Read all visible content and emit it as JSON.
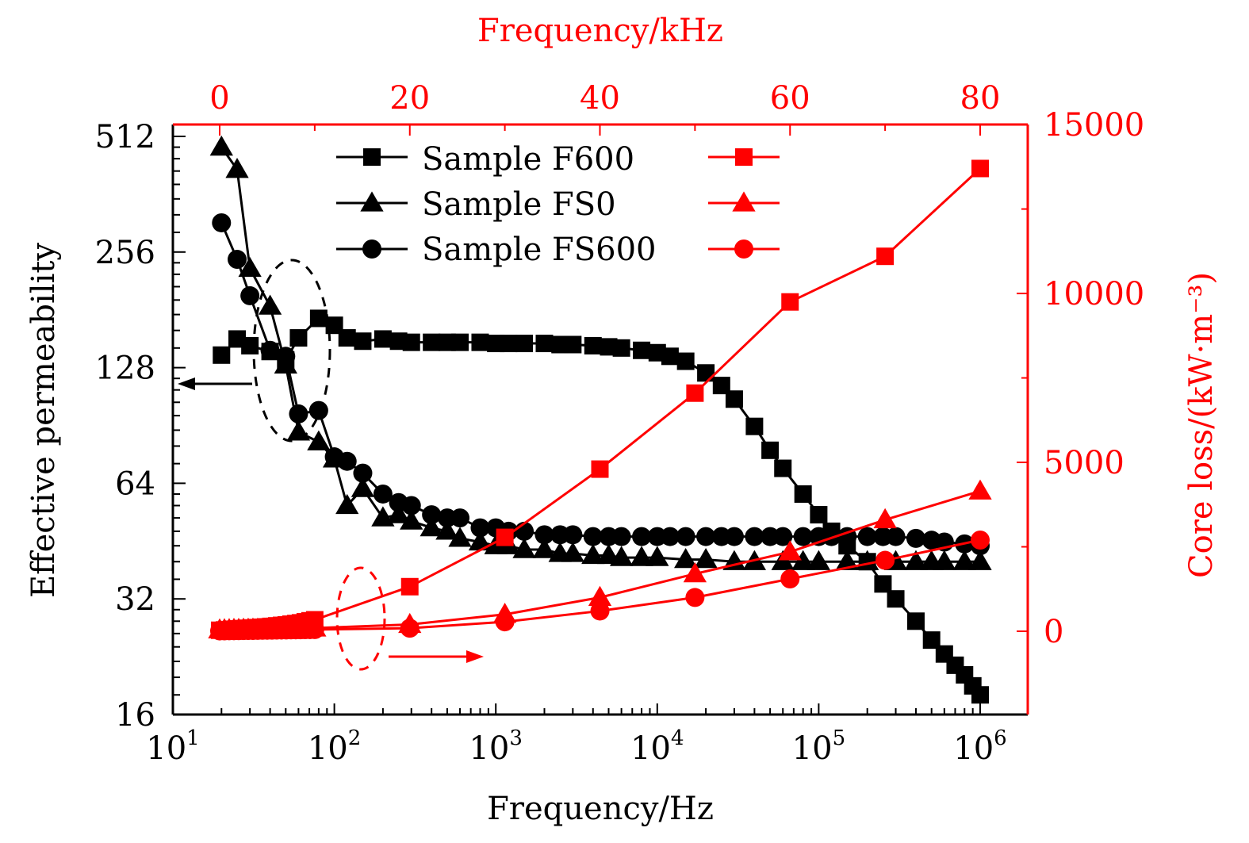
{
  "chart_data": {
    "type": "line",
    "title": "",
    "xlabel": "Frequency/Hz",
    "ylabel": "Effective permeability",
    "x_top_label": "Frequency/kHz",
    "y_right_label": "Core loss/(kW·m⁻³)",
    "x_scale": "log",
    "xlim": [
      10,
      2000000
    ],
    "ylim": [
      16,
      512
    ],
    "y_scale": "log2",
    "x_top_lim": [
      -5,
      85
    ],
    "y_right_lim": [
      -2500,
      15000
    ],
    "x_ticks": [
      {
        "base": "10",
        "exp": "1"
      },
      {
        "base": "10",
        "exp": "2"
      },
      {
        "base": "10",
        "exp": "3"
      },
      {
        "base": "10",
        "exp": "4"
      },
      {
        "base": "10",
        "exp": "5"
      },
      {
        "base": "10",
        "exp": "6"
      }
    ],
    "y_ticks": [
      "16",
      "32",
      "64",
      "128",
      "256",
      "512"
    ],
    "x_top_ticks": [
      "0",
      "20",
      "40",
      "60",
      "80"
    ],
    "y_right_ticks": [
      "0",
      "5000",
      "10000",
      "15000"
    ],
    "colors": {
      "permeability": "#000000",
      "core_loss": "#ff0000"
    },
    "legend": {
      "placement": "top-center",
      "entries": [
        {
          "label": "Sample F600",
          "marker": "square"
        },
        {
          "label": "Sample FS0",
          "marker": "triangle"
        },
        {
          "label": "Sample FS600",
          "marker": "circle"
        }
      ]
    },
    "annotations": [
      {
        "type": "dashed-ellipse",
        "color": "#000000",
        "arrow": "left",
        "meaning": "permeability curves refer to left axis"
      },
      {
        "type": "dashed-ellipse",
        "color": "#ff0000",
        "arrow": "right",
        "meaning": "core loss curves refer to right axis"
      }
    ],
    "permeability_series": [
      {
        "name": "Sample F600",
        "marker": "square",
        "x": [
          20,
          25,
          30,
          40,
          50,
          60,
          80,
          100,
          120,
          150,
          200,
          250,
          300,
          400,
          500,
          600,
          800,
          1000,
          1200,
          1500,
          2000,
          2500,
          3000,
          4000,
          5000,
          6000,
          8000,
          10000,
          12000,
          15000,
          20000,
          25000,
          30000,
          40000,
          50000,
          60000,
          80000,
          100000,
          120000,
          150000,
          200000,
          250000,
          300000,
          400000,
          500000,
          600000,
          700000,
          800000,
          900000,
          1000000
        ],
        "values": [
          138,
          152,
          146,
          141,
          134,
          153,
          172,
          165,
          153,
          150,
          152,
          150,
          149,
          149,
          149,
          149,
          149,
          148,
          148,
          148,
          148,
          147,
          147,
          146,
          145,
          144,
          142,
          140,
          137,
          133,
          124,
          115,
          106,
          90,
          78,
          70,
          60,
          53,
          48,
          44,
          40,
          35,
          32,
          28,
          25,
          23,
          21.5,
          20.3,
          19,
          18
        ]
      },
      {
        "name": "Sample FS0",
        "marker": "triangle",
        "x": [
          20,
          25,
          30,
          40,
          50,
          60,
          80,
          100,
          120,
          150,
          200,
          250,
          300,
          400,
          500,
          600,
          800,
          1000,
          1200,
          1500,
          2000,
          2500,
          3000,
          4000,
          5000,
          6000,
          8000,
          10000,
          15000,
          20000,
          30000,
          40000,
          60000,
          80000,
          100000,
          150000,
          200000,
          300000,
          400000,
          500000,
          600000,
          800000,
          1000000
        ],
        "values": [
          480,
          420,
          232,
          185,
          130,
          87,
          82,
          74,
          56,
          62,
          52,
          53,
          51,
          49,
          48,
          46,
          45,
          44,
          44,
          43,
          43,
          42,
          42,
          41.5,
          41.5,
          41,
          41,
          41,
          40.5,
          40.5,
          40,
          40,
          40,
          40,
          40,
          40,
          40,
          40,
          40,
          40,
          40,
          40,
          40
        ]
      },
      {
        "name": "Sample FS600",
        "marker": "circle",
        "x": [
          20,
          25,
          30,
          40,
          50,
          60,
          80,
          100,
          120,
          150,
          200,
          250,
          300,
          400,
          500,
          600,
          800,
          1000,
          1200,
          1500,
          2000,
          2500,
          3000,
          4000,
          5000,
          6000,
          8000,
          10000,
          12000,
          15000,
          20000,
          25000,
          30000,
          40000,
          50000,
          60000,
          80000,
          100000,
          120000,
          150000,
          200000,
          250000,
          300000,
          400000,
          500000,
          600000,
          800000,
          1000000
        ],
        "values": [
          305,
          245,
          197,
          142,
          137,
          97,
          99,
          75,
          73,
          68,
          60,
          57,
          56,
          53,
          52,
          52,
          49,
          49,
          48,
          48,
          47,
          47,
          47,
          46.5,
          46.5,
          46.5,
          46.5,
          46.5,
          46.5,
          46.5,
          46.5,
          46.5,
          46.5,
          46.5,
          46.5,
          46.5,
          46.5,
          46.5,
          46.5,
          46.5,
          46.5,
          46.5,
          46.5,
          46,
          45.5,
          45,
          44.5,
          44
        ]
      }
    ],
    "core_loss_series": [
      {
        "name": "Sample F600",
        "marker": "square",
        "x_khz": [
          0,
          0.5,
          1,
          1.5,
          2,
          2.5,
          3,
          3.5,
          4,
          4.5,
          5,
          5.5,
          6,
          6.5,
          7,
          7.5,
          8,
          8.5,
          9,
          9.5,
          10,
          20,
          30,
          40,
          50,
          60,
          70,
          80
        ],
        "values": [
          30,
          40,
          50,
          60,
          70,
          80,
          90,
          100,
          110,
          120,
          130,
          145,
          160,
          175,
          190,
          210,
          230,
          250,
          280,
          310,
          340,
          1320,
          2780,
          4800,
          7050,
          9750,
          11100,
          13700
        ]
      },
      {
        "name": "Sample FS0",
        "marker": "triangle",
        "x_khz": [
          0,
          0.5,
          1,
          1.5,
          2,
          2.5,
          3,
          3.5,
          4,
          4.5,
          5,
          5.5,
          6,
          6.5,
          7,
          7.5,
          8,
          8.5,
          9,
          9.5,
          10,
          20,
          30,
          40,
          50,
          60,
          70,
          80
        ],
        "values": [
          40,
          45,
          50,
          55,
          55,
          60,
          60,
          65,
          65,
          70,
          70,
          70,
          75,
          75,
          80,
          80,
          85,
          85,
          90,
          90,
          95,
          200,
          500,
          1000,
          1700,
          2350,
          3300,
          4150
        ]
      },
      {
        "name": "Sample FS600",
        "marker": "circle",
        "x_khz": [
          0,
          0.5,
          1,
          1.5,
          2,
          2.5,
          3,
          3.5,
          4,
          4.5,
          5,
          5.5,
          6,
          6.5,
          7,
          7.5,
          8,
          8.5,
          9,
          9.5,
          10,
          20,
          30,
          40,
          50,
          60,
          70,
          80
        ],
        "values": [
          10,
          12,
          14,
          16,
          18,
          20,
          22,
          24,
          26,
          28,
          30,
          32,
          34,
          36,
          38,
          40,
          42,
          44,
          46,
          48,
          50,
          90,
          280,
          600,
          1000,
          1550,
          2100,
          2700
        ]
      }
    ]
  }
}
